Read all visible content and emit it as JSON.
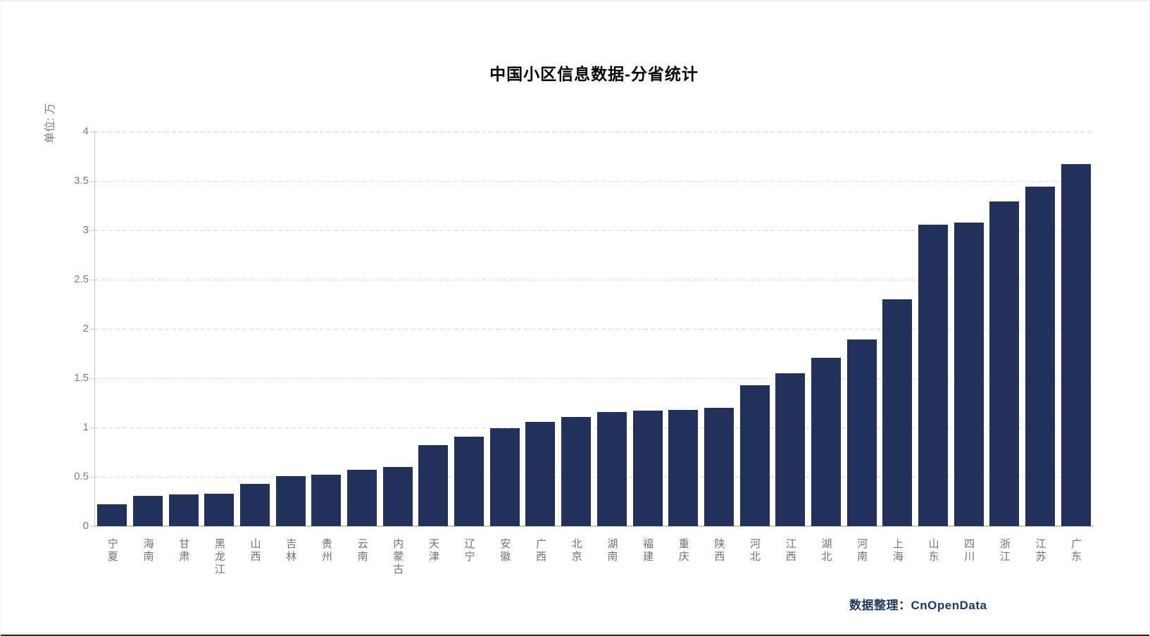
{
  "page": {
    "title": "中国小区信息数据-分省统计",
    "source_label": "数据整理：CnOpenData"
  },
  "chart_data": {
    "type": "bar",
    "title": "中国小区信息数据-分省统计",
    "unit_label": "单位: 万",
    "xlabel": "",
    "ylabel": "单位: 万",
    "categories": [
      "宁夏",
      "海南",
      "甘肃",
      "黑龙江",
      "山西",
      "吉林",
      "贵州",
      "云南",
      "内蒙古",
      "天津",
      "辽宁",
      "安徽",
      "广西",
      "北京",
      "湖南",
      "福建",
      "重庆",
      "陕西",
      "河北",
      "江西",
      "湖北",
      "河南",
      "上海",
      "山东",
      "四川",
      "浙江",
      "江苏",
      "广东"
    ],
    "values": [
      0.22,
      0.31,
      0.32,
      0.33,
      0.43,
      0.51,
      0.52,
      0.57,
      0.6,
      0.82,
      0.91,
      0.99,
      1.06,
      1.11,
      1.16,
      1.17,
      1.18,
      1.2,
      1.43,
      1.55,
      1.71,
      1.89,
      2.3,
      3.06,
      3.08,
      3.29,
      3.44,
      3.67
    ],
    "ylim": [
      0,
      4
    ],
    "ytick_step": 0.5,
    "yticks": [
      "0",
      "0.5",
      "1",
      "1.5",
      "2",
      "2.5",
      "3",
      "3.5",
      "4"
    ],
    "grid": "horizontal-dashed",
    "legend": "none",
    "source": "数据整理：CnOpenData",
    "colors": {
      "bar": "#22305c",
      "gridline": "#d9d9d9",
      "axis_line": "#c6c6c6",
      "tick_label": "#7c7c7c",
      "title_text": "#000000",
      "source_text": "#203864"
    }
  }
}
